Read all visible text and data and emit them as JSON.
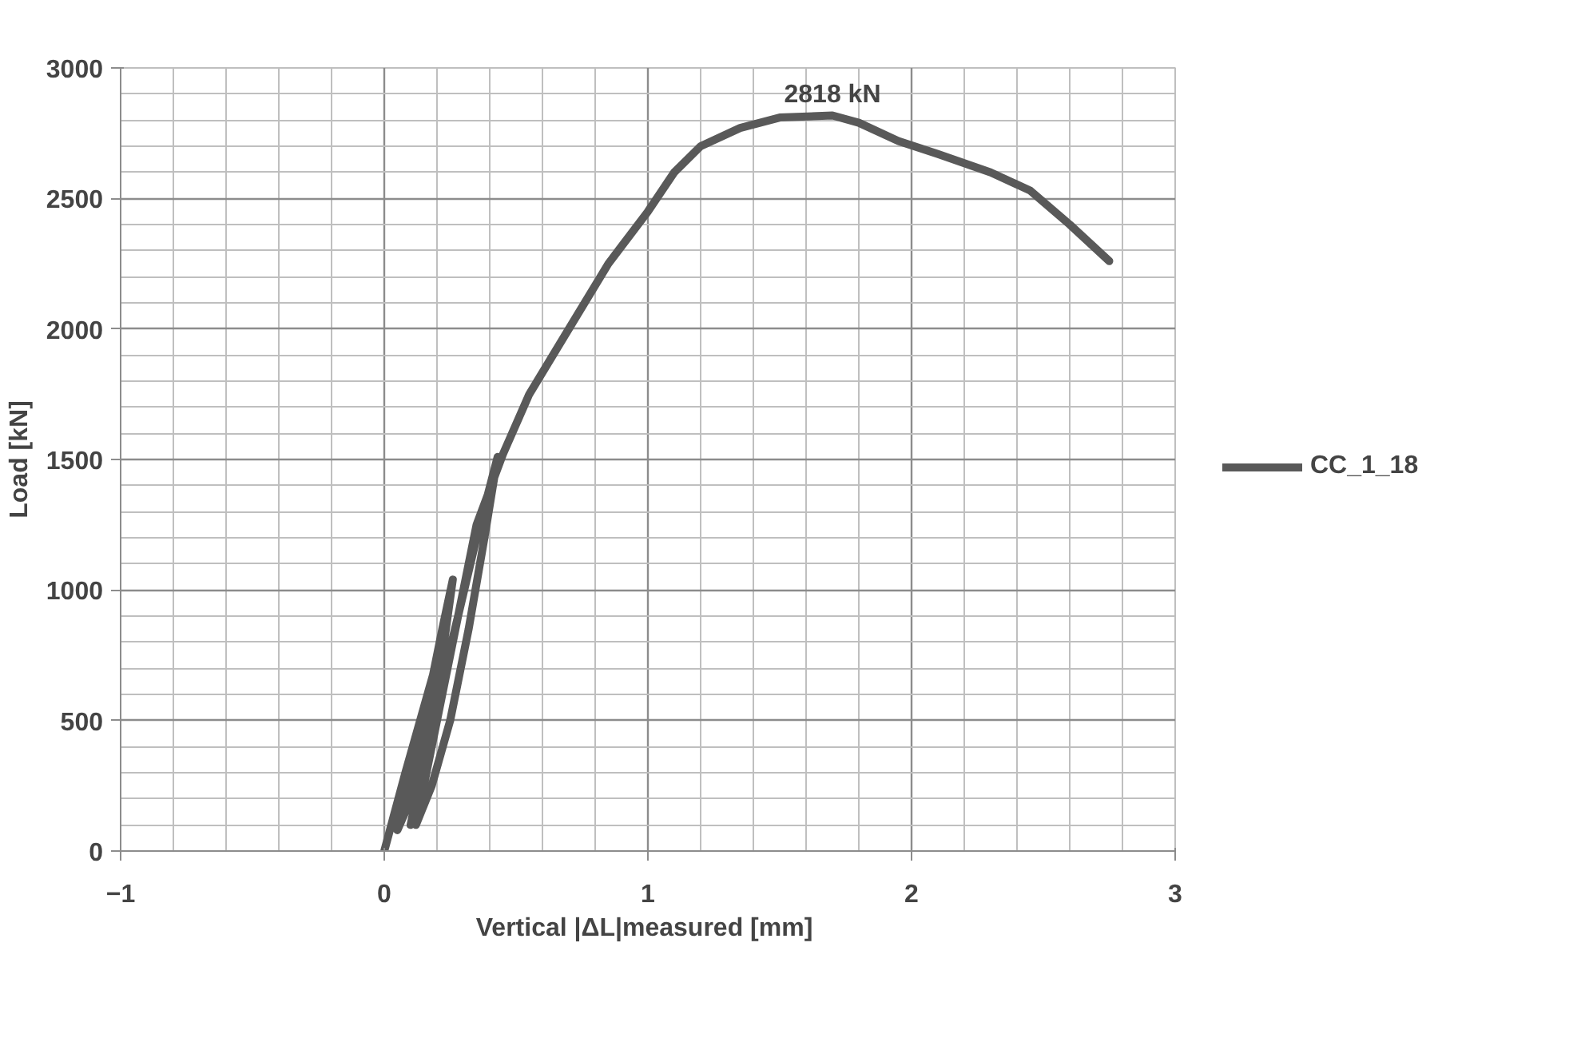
{
  "chart_data": {
    "type": "line",
    "xlabel": "Vertical  |ΔL|measured [mm]",
    "ylabel": "Load [kN]",
    "xlim": [
      -1,
      3
    ],
    "ylim": [
      0,
      3000
    ],
    "xticks": [
      -1,
      0,
      1,
      2,
      3
    ],
    "yticks": [
      0,
      500,
      1000,
      1500,
      2000,
      2500,
      3000
    ],
    "grid": true,
    "legend": "right",
    "marker": "none",
    "line_style": "solid",
    "annotations": [
      {
        "text": "2818 kN",
        "x": 1.7,
        "y": 2818
      }
    ],
    "series": [
      {
        "name": "CC_1_18",
        "color": "#595959",
        "x": [
          0,
          0.08,
          0.15,
          0.22,
          0.18,
          0.12,
          0.08,
          0.05,
          0.1,
          0.17,
          0.22,
          0.26,
          0.22,
          0.17,
          0.13,
          0.1,
          0.15,
          0.22,
          0.28,
          0.35,
          0.43,
          0.38,
          0.32,
          0.25,
          0.18,
          0.12,
          0.2,
          0.28,
          0.35,
          0.45,
          0.55,
          0.7,
          0.85,
          1.0,
          1.1,
          1.2,
          1.35,
          1.5,
          1.7,
          1.8,
          1.95,
          2.1,
          2.3,
          2.45,
          2.6,
          2.75
        ],
        "values": [
          0,
          300,
          550,
          800,
          600,
          350,
          150,
          80,
          300,
          600,
          850,
          1040,
          750,
          450,
          200,
          100,
          350,
          650,
          900,
          1200,
          1510,
          1200,
          850,
          500,
          250,
          100,
          500,
          900,
          1250,
          1520,
          1750,
          2000,
          2250,
          2450,
          2600,
          2700,
          2770,
          2810,
          2818,
          2790,
          2720,
          2670,
          2600,
          2530,
          2400,
          2260
        ]
      }
    ]
  }
}
